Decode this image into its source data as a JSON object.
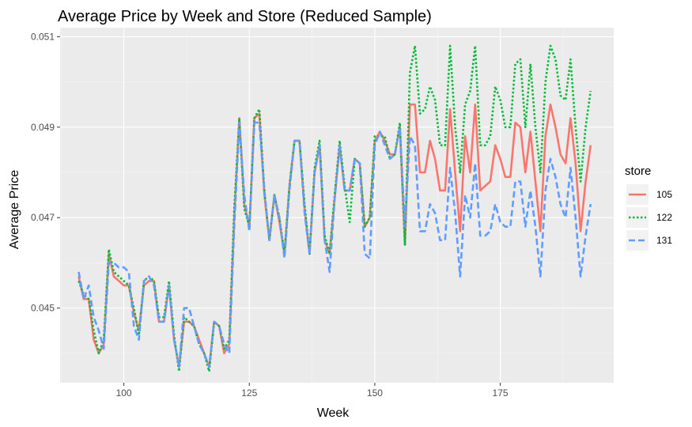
{
  "chart_data": {
    "type": "line",
    "title": "Average Price by Week and Store (Reduced Sample)",
    "xlabel": "Week",
    "ylabel": "Average Price",
    "xlim": [
      87.3,
      197.6
    ],
    "ylim": [
      0.04335,
      0.0512
    ],
    "x_ticks": [
      100,
      125,
      150,
      175
    ],
    "x_tick_labels": [
      "100",
      "125",
      "150",
      "175"
    ],
    "y_ticks": [
      0.045,
      0.047,
      0.049,
      0.051
    ],
    "y_tick_labels": [
      "0.045",
      "0.047",
      "0.049",
      "0.051"
    ],
    "grid": true,
    "panel_background": "#ebebeb",
    "legend_title": "store",
    "legend_position": "right",
    "x": [
      91,
      92,
      93,
      94,
      95,
      96,
      97,
      98,
      99,
      100,
      101,
      102,
      103,
      104,
      105,
      106,
      107,
      108,
      109,
      110,
      111,
      112,
      113,
      114,
      115,
      116,
      117,
      118,
      119,
      120,
      121,
      122,
      123,
      124,
      125,
      126,
      127,
      128,
      129,
      130,
      131,
      132,
      133,
      134,
      135,
      136,
      137,
      138,
      139,
      140,
      141,
      142,
      143,
      144,
      145,
      146,
      147,
      148,
      149,
      150,
      151,
      152,
      153,
      154,
      155,
      156,
      157,
      158,
      159,
      160,
      161,
      162,
      163,
      164,
      165,
      166,
      167,
      168,
      169,
      170,
      171,
      172,
      173,
      174,
      175,
      176,
      177,
      178,
      179,
      180,
      181,
      182,
      183,
      184,
      185,
      186,
      187,
      188,
      189,
      190,
      191,
      192,
      193
    ],
    "series": [
      {
        "name": "105",
        "color": "#f8766d",
        "dash": "solid",
        "values": [
          0.0457,
          0.0452,
          0.0452,
          0.0443,
          0.044,
          0.0442,
          0.0462,
          0.0457,
          0.0456,
          0.0455,
          0.0455,
          0.0449,
          0.0445,
          0.0455,
          0.0456,
          0.0456,
          0.0447,
          0.0447,
          0.0455,
          0.0443,
          0.0437,
          0.0447,
          0.0447,
          0.0446,
          0.0443,
          0.044,
          0.0437,
          0.0447,
          0.0446,
          0.044,
          0.0442,
          0.047,
          0.0492,
          0.0473,
          0.0468,
          0.0492,
          0.0493,
          0.0475,
          0.0465,
          0.0475,
          0.0469,
          0.0462,
          0.0477,
          0.0487,
          0.0487,
          0.0472,
          0.0462,
          0.048,
          0.0486,
          0.0465,
          0.0462,
          0.0474,
          0.0486,
          0.0476,
          0.0476,
          0.0483,
          0.0482,
          0.0468,
          0.047,
          0.0487,
          0.0489,
          0.0487,
          0.0484,
          0.0484,
          0.049,
          0.0464,
          0.0495,
          0.0495,
          0.048,
          0.048,
          0.0487,
          0.0483,
          0.0476,
          0.0476,
          0.0494,
          0.048,
          0.0467,
          0.0488,
          0.048,
          0.0495,
          0.0476,
          0.0477,
          0.0478,
          0.0486,
          0.0483,
          0.0479,
          0.0479,
          0.0491,
          0.049,
          0.048,
          0.0489,
          0.0478,
          0.0467,
          0.0488,
          0.0495,
          0.049,
          0.0484,
          0.0482,
          0.0492,
          0.0482,
          0.0467,
          0.0478,
          0.0486
        ]
      },
      {
        "name": "122",
        "color": "#00ba38",
        "dash": "dotted",
        "values": [
          0.0456,
          0.0453,
          0.0452,
          0.0445,
          0.044,
          0.0443,
          0.0463,
          0.0458,
          0.0457,
          0.0456,
          0.0455,
          0.045,
          0.0444,
          0.0456,
          0.0457,
          0.0456,
          0.0448,
          0.0448,
          0.0456,
          0.0444,
          0.0436,
          0.0448,
          0.0447,
          0.0446,
          0.0442,
          0.044,
          0.0436,
          0.0447,
          0.0446,
          0.0441,
          0.0443,
          0.0472,
          0.0492,
          0.0472,
          0.0468,
          0.0492,
          0.0494,
          0.0476,
          0.0465,
          0.0475,
          0.047,
          0.0462,
          0.0477,
          0.0487,
          0.0487,
          0.0473,
          0.0462,
          0.0481,
          0.0487,
          0.0466,
          0.0462,
          0.0475,
          0.0487,
          0.0477,
          0.0469,
          0.0483,
          0.0482,
          0.0468,
          0.047,
          0.0488,
          0.0488,
          0.0488,
          0.0483,
          0.0484,
          0.0491,
          0.0464,
          0.0502,
          0.0508,
          0.0493,
          0.0494,
          0.0499,
          0.0496,
          0.0486,
          0.0486,
          0.0508,
          0.049,
          0.048,
          0.0495,
          0.0498,
          0.0508,
          0.0486,
          0.0486,
          0.0488,
          0.0499,
          0.0496,
          0.049,
          0.049,
          0.0504,
          0.0505,
          0.049,
          0.0504,
          0.049,
          0.048,
          0.05,
          0.0508,
          0.0505,
          0.0497,
          0.0496,
          0.0505,
          0.049,
          0.0478,
          0.049,
          0.0498
        ]
      },
      {
        "name": "131",
        "color": "#619cff",
        "dash": "dashed",
        "values": [
          0.0458,
          0.0452,
          0.0455,
          0.0448,
          0.0445,
          0.0441,
          0.046,
          0.046,
          0.0459,
          0.0459,
          0.0458,
          0.0446,
          0.0443,
          0.0456,
          0.0457,
          0.0455,
          0.0447,
          0.0447,
          0.0455,
          0.0443,
          0.0437,
          0.045,
          0.045,
          0.0446,
          0.0442,
          0.044,
          0.0437,
          0.0447,
          0.0446,
          0.0442,
          0.044,
          0.0468,
          0.0491,
          0.0475,
          0.0467,
          0.0491,
          0.0491,
          0.0476,
          0.0465,
          0.0475,
          0.047,
          0.0461,
          0.0476,
          0.0487,
          0.0487,
          0.0471,
          0.0462,
          0.048,
          0.0486,
          0.0465,
          0.0458,
          0.0474,
          0.0486,
          0.0476,
          0.0476,
          0.0483,
          0.0482,
          0.0462,
          0.0461,
          0.0486,
          0.0489,
          0.0486,
          0.0483,
          0.0484,
          0.049,
          0.0468,
          0.0488,
          0.0486,
          0.0467,
          0.0467,
          0.0473,
          0.0471,
          0.0465,
          0.0465,
          0.0481,
          0.0471,
          0.0457,
          0.0475,
          0.047,
          0.0482,
          0.0466,
          0.0466,
          0.0467,
          0.0473,
          0.0469,
          0.0468,
          0.0468,
          0.0478,
          0.0478,
          0.0468,
          0.0476,
          0.0468,
          0.0457,
          0.0476,
          0.0483,
          0.0479,
          0.0473,
          0.047,
          0.0481,
          0.047,
          0.0457,
          0.0466,
          0.0473
        ]
      }
    ]
  }
}
